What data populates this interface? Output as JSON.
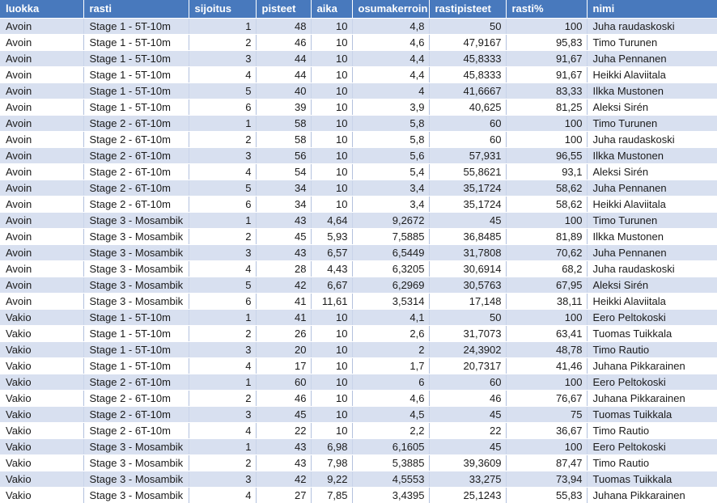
{
  "colors": {
    "header_bg": "#4879BD",
    "header_text": "#FFFFFF",
    "band_bg": "#D8E0F0",
    "grid_line": "#B3C1DE",
    "band_grid": "#C9D4EA",
    "row_divider": "#FFFFFF",
    "text": "#1B1B1B"
  },
  "table": {
    "columns": [
      {
        "key": "luokka",
        "label": "luokka",
        "align": "left"
      },
      {
        "key": "rasti",
        "label": "rasti",
        "align": "left"
      },
      {
        "key": "sijoitus",
        "label": "sijoitus",
        "align": "right"
      },
      {
        "key": "pisteet",
        "label": "pisteet",
        "align": "right"
      },
      {
        "key": "aika",
        "label": "aika",
        "align": "right"
      },
      {
        "key": "osumakerroin",
        "label": "osumakerroin",
        "align": "right"
      },
      {
        "key": "rastipisteet",
        "label": "rastipisteet",
        "align": "right"
      },
      {
        "key": "rasti_pct",
        "label": "rasti%",
        "align": "right"
      },
      {
        "key": "nimi",
        "label": "nimi",
        "align": "left"
      }
    ],
    "rows": [
      [
        "Avoin",
        "Stage 1 - 5T-10m",
        "1",
        "48",
        "10",
        "4,8",
        "50",
        "100",
        "Juha raudaskoski"
      ],
      [
        "Avoin",
        "Stage 1 - 5T-10m",
        "2",
        "46",
        "10",
        "4,6",
        "47,9167",
        "95,83",
        "Timo Turunen"
      ],
      [
        "Avoin",
        "Stage 1 - 5T-10m",
        "3",
        "44",
        "10",
        "4,4",
        "45,8333",
        "91,67",
        "Juha Pennanen"
      ],
      [
        "Avoin",
        "Stage 1 - 5T-10m",
        "4",
        "44",
        "10",
        "4,4",
        "45,8333",
        "91,67",
        "Heikki Alaviitala"
      ],
      [
        "Avoin",
        "Stage 1 - 5T-10m",
        "5",
        "40",
        "10",
        "4",
        "41,6667",
        "83,33",
        "Ilkka Mustonen"
      ],
      [
        "Avoin",
        "Stage 1 - 5T-10m",
        "6",
        "39",
        "10",
        "3,9",
        "40,625",
        "81,25",
        "Aleksi Sirén"
      ],
      [
        "Avoin",
        "Stage 2 - 6T-10m",
        "1",
        "58",
        "10",
        "5,8",
        "60",
        "100",
        "Timo Turunen"
      ],
      [
        "Avoin",
        "Stage 2 - 6T-10m",
        "2",
        "58",
        "10",
        "5,8",
        "60",
        "100",
        "Juha raudaskoski"
      ],
      [
        "Avoin",
        "Stage 2 - 6T-10m",
        "3",
        "56",
        "10",
        "5,6",
        "57,931",
        "96,55",
        "Ilkka Mustonen"
      ],
      [
        "Avoin",
        "Stage 2 - 6T-10m",
        "4",
        "54",
        "10",
        "5,4",
        "55,8621",
        "93,1",
        "Aleksi Sirén"
      ],
      [
        "Avoin",
        "Stage 2 - 6T-10m",
        "5",
        "34",
        "10",
        "3,4",
        "35,1724",
        "58,62",
        "Juha Pennanen"
      ],
      [
        "Avoin",
        "Stage 2 - 6T-10m",
        "6",
        "34",
        "10",
        "3,4",
        "35,1724",
        "58,62",
        "Heikki Alaviitala"
      ],
      [
        "Avoin",
        "Stage 3 - Mosambik",
        "1",
        "43",
        "4,64",
        "9,2672",
        "45",
        "100",
        "Timo Turunen"
      ],
      [
        "Avoin",
        "Stage 3 - Mosambik",
        "2",
        "45",
        "5,93",
        "7,5885",
        "36,8485",
        "81,89",
        "Ilkka Mustonen"
      ],
      [
        "Avoin",
        "Stage 3 - Mosambik",
        "3",
        "43",
        "6,57",
        "6,5449",
        "31,7808",
        "70,62",
        "Juha Pennanen"
      ],
      [
        "Avoin",
        "Stage 3 - Mosambik",
        "4",
        "28",
        "4,43",
        "6,3205",
        "30,6914",
        "68,2",
        "Juha raudaskoski"
      ],
      [
        "Avoin",
        "Stage 3 - Mosambik",
        "5",
        "42",
        "6,67",
        "6,2969",
        "30,5763",
        "67,95",
        "Aleksi Sirén"
      ],
      [
        "Avoin",
        "Stage 3 - Mosambik",
        "6",
        "41",
        "11,61",
        "3,5314",
        "17,148",
        "38,11",
        "Heikki Alaviitala"
      ],
      [
        "Vakio",
        "Stage 1 - 5T-10m",
        "1",
        "41",
        "10",
        "4,1",
        "50",
        "100",
        "Eero Peltokoski"
      ],
      [
        "Vakio",
        "Stage 1 - 5T-10m",
        "2",
        "26",
        "10",
        "2,6",
        "31,7073",
        "63,41",
        "Tuomas Tuikkala"
      ],
      [
        "Vakio",
        "Stage 1 - 5T-10m",
        "3",
        "20",
        "10",
        "2",
        "24,3902",
        "48,78",
        "Timo Rautio"
      ],
      [
        "Vakio",
        "Stage 1 - 5T-10m",
        "4",
        "17",
        "10",
        "1,7",
        "20,7317",
        "41,46",
        "Juhana Pikkarainen"
      ],
      [
        "Vakio",
        "Stage 2 - 6T-10m",
        "1",
        "60",
        "10",
        "6",
        "60",
        "100",
        "Eero Peltokoski"
      ],
      [
        "Vakio",
        "Stage 2 - 6T-10m",
        "2",
        "46",
        "10",
        "4,6",
        "46",
        "76,67",
        "Juhana Pikkarainen"
      ],
      [
        "Vakio",
        "Stage 2 - 6T-10m",
        "3",
        "45",
        "10",
        "4,5",
        "45",
        "75",
        "Tuomas Tuikkala"
      ],
      [
        "Vakio",
        "Stage 2 - 6T-10m",
        "4",
        "22",
        "10",
        "2,2",
        "22",
        "36,67",
        "Timo Rautio"
      ],
      [
        "Vakio",
        "Stage 3 - Mosambik",
        "1",
        "43",
        "6,98",
        "6,1605",
        "45",
        "100",
        "Eero Peltokoski"
      ],
      [
        "Vakio",
        "Stage 3 - Mosambik",
        "2",
        "43",
        "7,98",
        "5,3885",
        "39,3609",
        "87,47",
        "Timo Rautio"
      ],
      [
        "Vakio",
        "Stage 3 - Mosambik",
        "3",
        "42",
        "9,22",
        "4,5553",
        "33,275",
        "73,94",
        "Tuomas Tuikkala"
      ],
      [
        "Vakio",
        "Stage 3 - Mosambik",
        "4",
        "27",
        "7,85",
        "3,4395",
        "25,1243",
        "55,83",
        "Juhana Pikkarainen"
      ]
    ]
  }
}
